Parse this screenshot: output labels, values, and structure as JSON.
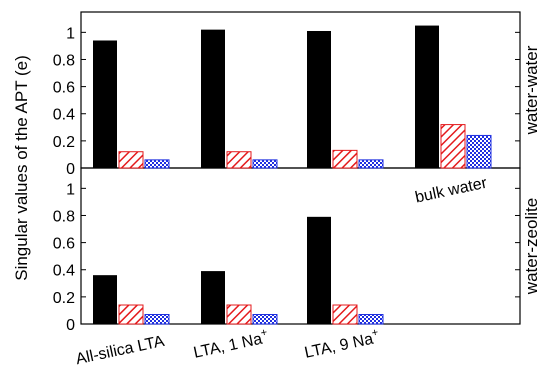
{
  "chart_data": {
    "type": "bar",
    "ylabel": "Singular values of the APT (e)",
    "colors": [
      "#000000",
      "#e41a1c",
      "#1f2fe0"
    ],
    "patterns": [
      "solid",
      "diagonal-hatch",
      "crosshatch"
    ],
    "panels": [
      {
        "name": "water-water",
        "ylim": [
          0,
          1.15
        ],
        "yticks": [
          "0",
          "0.2",
          "0.4",
          "0.6",
          "0.8",
          "1"
        ],
        "ytick_values": [
          0,
          0.2,
          0.4,
          0.6,
          0.8,
          1.0
        ],
        "groups": [
          {
            "label": "All-silica LTA",
            "values": [
              0.94,
              0.12,
              0.06
            ]
          },
          {
            "label": "LTA, 1 Na+",
            "values": [
              1.02,
              0.12,
              0.06
            ]
          },
          {
            "label": "LTA, 9 Na+",
            "values": [
              1.01,
              0.13,
              0.06
            ]
          },
          {
            "label": "bulk water",
            "values": [
              1.05,
              0.32,
              0.24
            ]
          }
        ]
      },
      {
        "name": "water-zeolite",
        "ylim": [
          0,
          1.15
        ],
        "yticks": [
          "0",
          "0.2",
          "0.4",
          "0.6",
          "0.8",
          "1"
        ],
        "ytick_values": [
          0,
          0.2,
          0.4,
          0.6,
          0.8,
          1.0
        ],
        "groups": [
          {
            "label": "All-silica LTA",
            "values": [
              0.36,
              0.14,
              0.07
            ]
          },
          {
            "label": "LTA, 1 Na+",
            "values": [
              0.39,
              0.14,
              0.07
            ]
          },
          {
            "label": "LTA, 9 Na+",
            "values": [
              0.79,
              0.14,
              0.07
            ]
          }
        ]
      }
    ],
    "x_labels": [
      "All-silica LTA",
      "LTA, 1 Na",
      "LTA, 9 Na"
    ],
    "x_label_superscript": "+",
    "annotations": [
      "bulk water"
    ]
  }
}
